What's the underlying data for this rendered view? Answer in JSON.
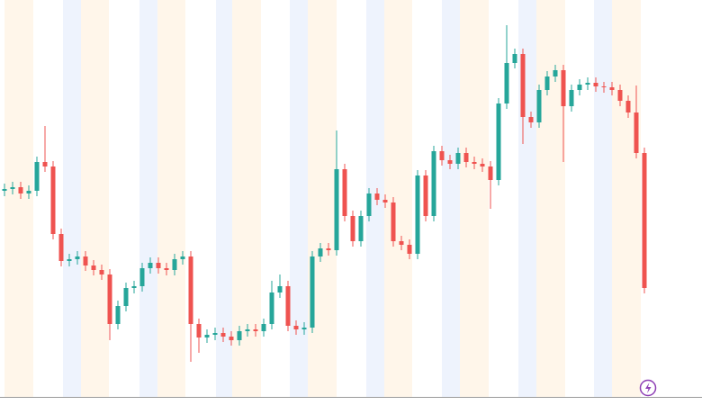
{
  "chart_data": {
    "type": "candlestick",
    "up_color": "#26a69a",
    "down_color": "#ef5350",
    "ylim": [
      0,
      440
    ],
    "series": [
      {
        "open": [
          228,
          230,
          232,
          225,
          228,
          260,
          255,
          180,
          150,
          152,
          155,
          145,
          140,
          135,
          80,
          100,
          120,
          122,
          142,
          148,
          142,
          140,
          152,
          155,
          80,
          65,
          68,
          70,
          66,
          62,
          72,
          74,
          72,
          80,
          115,
          122,
          78,
          74,
          76,
          155,
          164,
          162,
          252,
          200,
          172,
          200,
          225,
          218,
          215,
          172,
          168,
          158,
          245,
          200,
          272,
          262,
          258,
          270,
          260,
          258,
          255,
          240,
          325,
          370,
          380,
          310,
          304,
          340,
          355,
          362,
          322,
          340,
          346,
          348,
          344,
          343,
          340,
          328,
          315,
          270
        ],
        "close": [
          230,
          232,
          225,
          228,
          260,
          255,
          180,
          150,
          152,
          155,
          145,
          140,
          135,
          80,
          100,
          120,
          122,
          142,
          148,
          142,
          140,
          152,
          155,
          80,
          65,
          68,
          70,
          66,
          62,
          72,
          74,
          72,
          80,
          115,
          122,
          78,
          74,
          76,
          155,
          164,
          162,
          252,
          200,
          172,
          200,
          225,
          218,
          215,
          172,
          168,
          158,
          245,
          200,
          272,
          262,
          258,
          270,
          260,
          258,
          255,
          240,
          325,
          370,
          380,
          310,
          304,
          340,
          355,
          362,
          322,
          340,
          346,
          348,
          344,
          343,
          340,
          328,
          315,
          270,
          120
        ],
        "high": [
          236,
          238,
          238,
          234,
          266,
          300,
          261,
          186,
          158,
          161,
          161,
          151,
          146,
          141,
          106,
          126,
          128,
          148,
          154,
          154,
          148,
          158,
          161,
          161,
          86,
          74,
          76,
          76,
          72,
          78,
          80,
          80,
          86,
          128,
          135,
          128,
          84,
          82,
          161,
          170,
          170,
          295,
          258,
          206,
          206,
          231,
          231,
          224,
          221,
          178,
          174,
          251,
          251,
          278,
          278,
          268,
          276,
          276,
          266,
          264,
          261,
          331,
          412,
          386,
          386,
          316,
          346,
          361,
          368,
          368,
          346,
          352,
          354,
          354,
          349,
          349,
          346,
          334,
          345,
          276
        ],
        "low": [
          222,
          224,
          219,
          219,
          222,
          249,
          174,
          144,
          144,
          146,
          139,
          134,
          129,
          62,
          74,
          94,
          114,
          116,
          136,
          136,
          134,
          134,
          146,
          38,
          48,
          59,
          62,
          60,
          56,
          56,
          66,
          66,
          66,
          74,
          109,
          72,
          68,
          68,
          70,
          149,
          156,
          156,
          194,
          166,
          166,
          194,
          212,
          209,
          166,
          162,
          152,
          152,
          194,
          194,
          256,
          252,
          252,
          254,
          252,
          249,
          208,
          234,
          319,
          364,
          280,
          298,
          298,
          334,
          349,
          260,
          316,
          334,
          340,
          338,
          337,
          334,
          322,
          309,
          264,
          114
        ]
      }
    ]
  }
}
